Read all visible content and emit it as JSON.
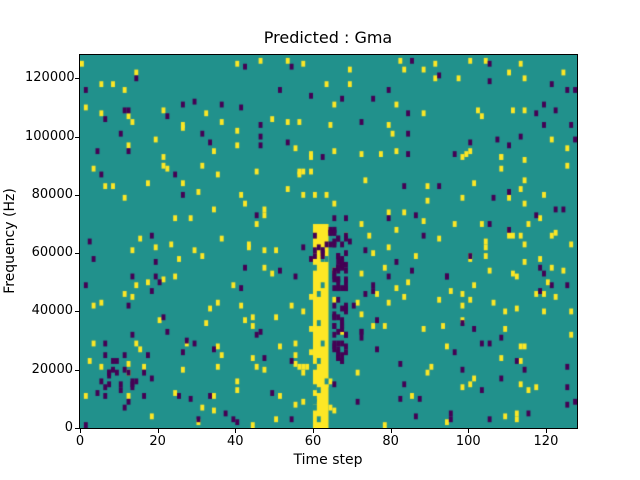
{
  "figure": {
    "title": "Predicted : Gma",
    "xlabel": "Time step",
    "ylabel": "Frequency (Hz)"
  },
  "chart_data": {
    "type": "heatmap",
    "title": "Predicted : Gma",
    "xlabel": "Time step",
    "ylabel": "Frequency (Hz)",
    "xlim": [
      0,
      128
    ],
    "ylim": [
      0,
      128000
    ],
    "x_ticks": [
      0,
      20,
      40,
      60,
      80,
      100,
      120
    ],
    "y_ticks": [
      0,
      20000,
      40000,
      60000,
      80000,
      100000,
      120000
    ],
    "grid": false,
    "legend": "none",
    "colors": {
      "mid_teal": "#21918c",
      "high_yellow": "#fde725",
      "low_purple": "#440154",
      "axes": "#000000",
      "background": "#ffffff"
    },
    "grid_size": {
      "time_steps": 128,
      "freq_bins": 128,
      "hz_per_bin": 1000
    },
    "features": [
      {
        "label": "yellow-call-band",
        "color": "high_yellow",
        "t_range": [
          60,
          64
        ],
        "f_range": [
          0,
          70000
        ],
        "density": 1.0,
        "holes": 0.12
      },
      {
        "label": "purple-shadow-band",
        "color": "low_purple",
        "t_range": [
          65,
          69
        ],
        "f_range": [
          20000,
          70000
        ],
        "density": 0.8,
        "holes": 0
      },
      {
        "label": "purple-patch-band-top",
        "color": "low_purple",
        "t_range": [
          60,
          66
        ],
        "f_range": [
          58000,
          70000
        ],
        "density": 0.35,
        "holes": 0
      },
      {
        "label": "purple-cluster-bottom-left",
        "color": "low_purple",
        "t_range": [
          4,
          18
        ],
        "f_range": [
          10000,
          28000
        ],
        "density": 0.18,
        "holes": 0
      }
    ],
    "scatter": {
      "seed": 1337,
      "yellow_cells": 280,
      "purple_cells": 160,
      "cell_w_steps": 1,
      "cell_h_bins": 2
    }
  }
}
